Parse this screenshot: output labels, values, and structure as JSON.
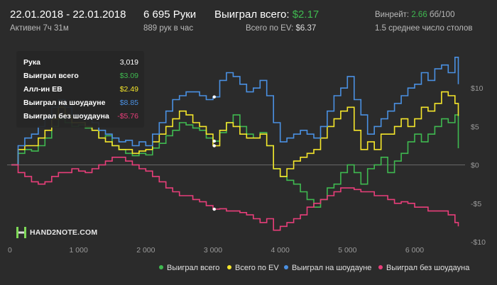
{
  "header": {
    "date_range": "22.01.2018 - 22.01.2018",
    "active": "Активен 7ч 31м",
    "hands": "6 695 Руки",
    "hands_per_hour": "889 рук в час",
    "won_label": "Выиграл всего:",
    "won_value": "$2.17",
    "ev_label": "Всего по EV:",
    "ev_value": "$6.37",
    "winrate_label": "Винрейт:",
    "winrate_value": "2.66",
    "winrate_unit": "бб/100",
    "tables": "1.5 среднее число столов"
  },
  "tooltip": {
    "rows": [
      {
        "label": "Рука",
        "value": "3,019",
        "color": "#ffffff"
      },
      {
        "label": "Выиграл всего",
        "value": "$3.09",
        "color": "#3fb950"
      },
      {
        "label": "Алл-ин ЕВ",
        "value": "$2.49",
        "color": "#f5e62b"
      },
      {
        "label": "Выиграл на шоудауне",
        "value": "$8.85",
        "color": "#4a90e2"
      },
      {
        "label": "Выиграл без шоудауна",
        "value": "-$5.76",
        "color": "#e83e7a"
      }
    ]
  },
  "logo": {
    "text": "HAND2NOTE.COM"
  },
  "chart_data": {
    "type": "line",
    "title": "",
    "xlabel": "",
    "ylabel": "",
    "x_ticks": [
      0,
      1000,
      2000,
      3000,
      4000,
      5000,
      6000
    ],
    "x_tick_labels": [
      "0",
      "1 000",
      "2 000",
      "3 000",
      "4 000",
      "5 000",
      "6 000"
    ],
    "xlim": [
      0,
      6750
    ],
    "y_ticks": [
      10,
      5,
      0,
      -5,
      -10
    ],
    "y_tick_labels": [
      "$10",
      "$5",
      "$0",
      "-$5",
      "-$10"
    ],
    "ylim": [
      -10,
      15
    ],
    "legend_position": "bottom-right",
    "series": [
      {
        "name": "Выиграл всего",
        "color": "#3fb950",
        "x": [
          0,
          100,
          200,
          300,
          400,
          500,
          600,
          700,
          800,
          900,
          1000,
          1100,
          1200,
          1300,
          1400,
          1500,
          1600,
          1700,
          1800,
          1900,
          2000,
          2100,
          2200,
          2300,
          2400,
          2500,
          2600,
          2700,
          2800,
          2900,
          3000,
          3100,
          3200,
          3300,
          3400,
          3500,
          3600,
          3700,
          3800,
          3900,
          4000,
          4100,
          4200,
          4300,
          4400,
          4500,
          4600,
          4700,
          4800,
          4900,
          5000,
          5100,
          5200,
          5300,
          5400,
          5500,
          5600,
          5700,
          5800,
          5900,
          6000,
          6100,
          6200,
          6300,
          6400,
          6500,
          6600,
          6650
        ],
        "values": [
          0,
          1.5,
          2,
          1.8,
          2.5,
          3.5,
          5,
          6,
          5.5,
          5,
          5.2,
          4.8,
          4.5,
          3.5,
          3.8,
          2.5,
          2,
          1.5,
          1.2,
          1.5,
          1.3,
          2.2,
          2.8,
          3.8,
          4.5,
          5.5,
          5.2,
          4.8,
          4.5,
          3.5,
          3.09,
          4.2,
          5.5,
          6.5,
          5,
          4,
          3.5,
          4.2,
          2.5,
          -0.5,
          -1.5,
          -2,
          -2.5,
          -3.5,
          -4.5,
          -5.5,
          -4.5,
          -3,
          -2.5,
          -1,
          0,
          -1,
          -2.5,
          -0.5,
          0,
          1,
          -1,
          0.5,
          1.5,
          3,
          4,
          3,
          4,
          5,
          6,
          5.5,
          6.5,
          2.17
        ]
      },
      {
        "name": "Всего по EV",
        "color": "#f5e62b",
        "x": [
          0,
          100,
          200,
          300,
          400,
          500,
          600,
          700,
          800,
          900,
          1000,
          1100,
          1200,
          1300,
          1400,
          1500,
          1600,
          1700,
          1800,
          1900,
          2000,
          2100,
          2200,
          2300,
          2400,
          2500,
          2600,
          2700,
          2800,
          2900,
          3000,
          3100,
          3200,
          3300,
          3400,
          3500,
          3600,
          3700,
          3800,
          3900,
          4000,
          4100,
          4200,
          4300,
          4400,
          4500,
          4600,
          4700,
          4800,
          4900,
          5000,
          5100,
          5200,
          5300,
          5400,
          5500,
          5600,
          5700,
          5800,
          5900,
          6000,
          6100,
          6200,
          6300,
          6400,
          6500,
          6600,
          6650
        ],
        "values": [
          0,
          2,
          2.5,
          2.5,
          3.5,
          4.5,
          6,
          7.5,
          6.5,
          5.5,
          5.5,
          5,
          4.5,
          3.5,
          3,
          2.5,
          2,
          2,
          1.5,
          1.8,
          2,
          3,
          4,
          5,
          6,
          7,
          6.5,
          5.5,
          5,
          4,
          2.49,
          4.5,
          5.5,
          5,
          4,
          3.5,
          3.5,
          4,
          2.5,
          -0.5,
          -1.5,
          -0.5,
          0.5,
          1,
          1.5,
          2,
          3.5,
          5,
          6,
          7,
          7.5,
          4.5,
          2,
          3,
          2,
          4,
          4,
          5,
          6,
          5,
          6,
          7.5,
          7,
          8,
          9.5,
          9,
          8,
          6.37
        ]
      },
      {
        "name": "Выиграл на шоудауне",
        "color": "#4a90e2",
        "x": [
          0,
          100,
          200,
          300,
          400,
          500,
          600,
          700,
          800,
          900,
          1000,
          1100,
          1200,
          1300,
          1400,
          1500,
          1600,
          1700,
          1800,
          1900,
          2000,
          2100,
          2200,
          2300,
          2400,
          2500,
          2600,
          2700,
          2800,
          2900,
          3000,
          3100,
          3200,
          3300,
          3400,
          3500,
          3600,
          3700,
          3800,
          3900,
          4000,
          4100,
          4200,
          4300,
          4400,
          4500,
          4600,
          4700,
          4800,
          4900,
          5000,
          5100,
          5200,
          5300,
          5400,
          5500,
          5600,
          5700,
          5800,
          5900,
          6000,
          6100,
          6200,
          6300,
          6400,
          6500,
          6600,
          6650
        ],
        "values": [
          0,
          2.5,
          3.5,
          4,
          5,
          6,
          7.5,
          8.5,
          7.5,
          6.5,
          6.5,
          6,
          5.5,
          4.5,
          4,
          3.5,
          3,
          3.2,
          2.5,
          3,
          2.5,
          4,
          5.5,
          7,
          8.5,
          9,
          9.5,
          9.5,
          9,
          8.5,
          8.85,
          11,
          12,
          11.5,
          10.5,
          9.5,
          10,
          11,
          9,
          5.5,
          3,
          3.5,
          4,
          4.5,
          4,
          3.5,
          5,
          7,
          9,
          10,
          11.5,
          8.5,
          6.5,
          4,
          5,
          6,
          7,
          8,
          9,
          10,
          10.5,
          12,
          11,
          12.5,
          13,
          12,
          14,
          10.5
        ]
      },
      {
        "name": "Выиграл без шоудауна",
        "color": "#e83e7a",
        "x": [
          0,
          100,
          200,
          300,
          400,
          500,
          600,
          700,
          800,
          900,
          1000,
          1100,
          1200,
          1300,
          1400,
          1500,
          1600,
          1700,
          1800,
          1900,
          2000,
          2100,
          2200,
          2300,
          2400,
          2500,
          2600,
          2700,
          2800,
          2900,
          3000,
          3100,
          3200,
          3300,
          3400,
          3500,
          3600,
          3700,
          3800,
          3900,
          4000,
          4100,
          4200,
          4300,
          4400,
          4500,
          4600,
          4700,
          4800,
          4900,
          5000,
          5100,
          5200,
          5300,
          5400,
          5500,
          5600,
          5700,
          5800,
          5900,
          6000,
          6100,
          6200,
          6300,
          6400,
          6500,
          6600,
          6650
        ],
        "values": [
          0,
          -1,
          -1.5,
          -2.2,
          -2.5,
          -2.2,
          -1.5,
          -1,
          -1,
          -0.5,
          -0.8,
          -1,
          -0.5,
          0,
          0.5,
          1,
          1,
          0.5,
          0,
          -0.5,
          -0.8,
          -1.5,
          -2.2,
          -3,
          -3.5,
          -4,
          -4,
          -4.5,
          -4.8,
          -5.3,
          -5.76,
          -5.7,
          -6,
          -6,
          -6.2,
          -6.5,
          -7,
          -7.5,
          -7,
          -8.5,
          -8,
          -7.5,
          -7,
          -6.5,
          -5.5,
          -5,
          -4.5,
          -4,
          -3.5,
          -3,
          -3,
          -3.2,
          -3.5,
          -3.5,
          -4,
          -4,
          -4.5,
          -5,
          -4.8,
          -5,
          -5.5,
          -5.5,
          -6,
          -6,
          -6,
          -6.5,
          -7.5,
          -8
        ]
      }
    ],
    "markers": [
      {
        "x": 3019,
        "y": 3.09
      },
      {
        "x": 3019,
        "y": 2.49
      },
      {
        "x": 3019,
        "y": 8.85
      },
      {
        "x": 3019,
        "y": -5.76
      }
    ]
  }
}
